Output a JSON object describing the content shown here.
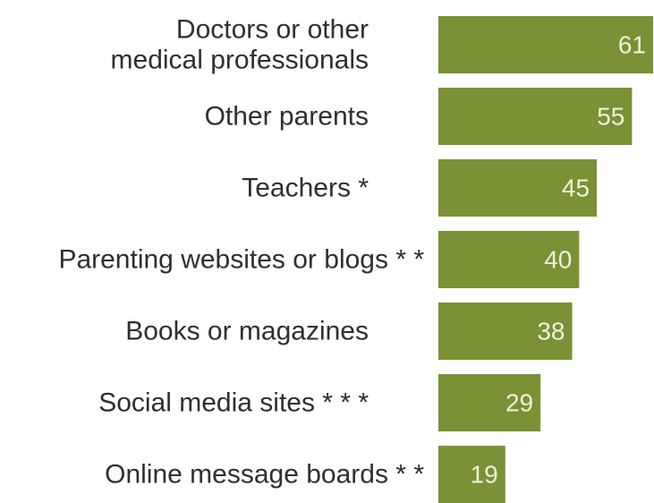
{
  "chart_data": {
    "type": "bar",
    "orientation": "horizontal",
    "categories": [
      "Doctors or other\nmedical professionals",
      "Other parents",
      "Teachers *",
      "Parenting websites or blogs * *",
      "Books or magazines",
      "Social media sites * * *",
      "Online message boards * *"
    ],
    "values": [
      61,
      55,
      45,
      40,
      38,
      29,
      19
    ],
    "data_labels": [
      "61",
      "55",
      "45",
      "40",
      "38",
      "29",
      "19"
    ],
    "xlim": [
      0,
      61
    ],
    "grid": false,
    "legend": "none",
    "bar_color": "#7a9136",
    "label_color": "#2f2f2f",
    "value_label_color": "#f2f0d8"
  }
}
